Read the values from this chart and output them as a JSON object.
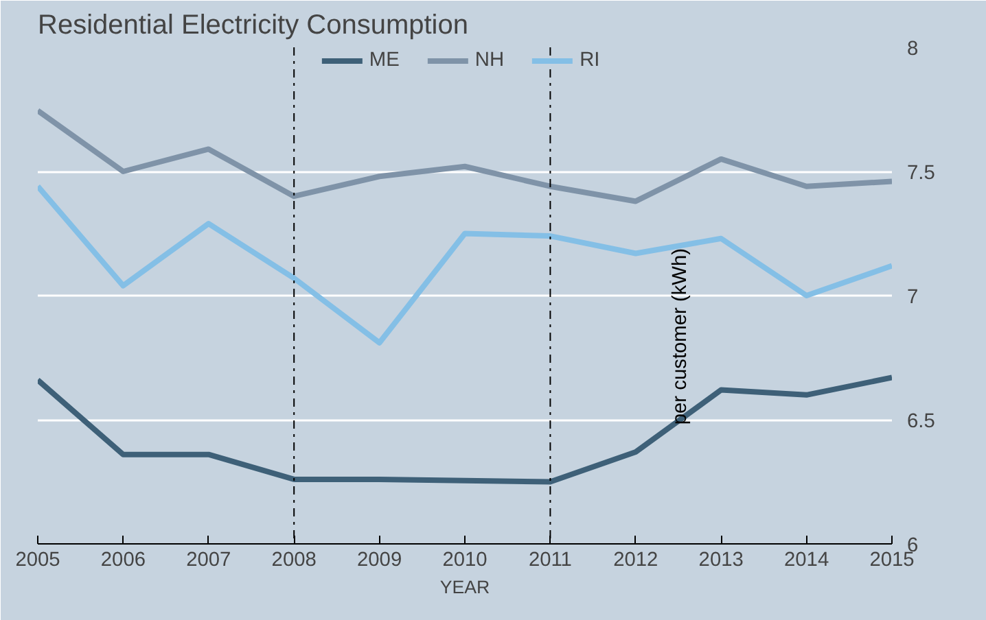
{
  "chart_data": {
    "type": "line",
    "title": "Residential Electricity Consumption",
    "xlabel": "YEAR",
    "ylabel": "per customer (kWh)",
    "x": [
      2005,
      2006,
      2007,
      2008,
      2009,
      2010,
      2011,
      2012,
      2013,
      2014,
      2015
    ],
    "series": [
      {
        "name": "ME",
        "color": "#3e6078",
        "values": [
          6.66,
          6.36,
          6.36,
          6.26,
          6.26,
          6.255,
          6.25,
          6.37,
          6.62,
          6.6,
          6.67
        ]
      },
      {
        "name": "NH",
        "color": "#7f93a8",
        "values": [
          7.745,
          7.5,
          7.59,
          7.4,
          7.48,
          7.52,
          7.44,
          7.38,
          7.55,
          7.44,
          7.46
        ]
      },
      {
        "name": "RI",
        "color": "#84bfe6",
        "values": [
          7.44,
          7.04,
          7.29,
          7.07,
          6.81,
          7.25,
          7.24,
          7.17,
          7.23,
          7.0,
          7.12
        ]
      }
    ],
    "xlim": [
      2005,
      2015
    ],
    "xticks": [
      2005,
      2006,
      2007,
      2008,
      2009,
      2010,
      2011,
      2012,
      2013,
      2014,
      2015
    ],
    "ylim": [
      6,
      8
    ],
    "yticks": [
      6,
      6.5,
      7,
      7.5,
      8
    ],
    "ref_lines": [
      {
        "axis": "x",
        "value": 2008,
        "color": "#000000",
        "line_style": "dashdot"
      },
      {
        "axis": "x",
        "value": 2011,
        "color": "#000000",
        "line_style": "dashdot"
      }
    ],
    "grid": "y",
    "legend": "top",
    "line_style": "solid",
    "marker": "none"
  }
}
